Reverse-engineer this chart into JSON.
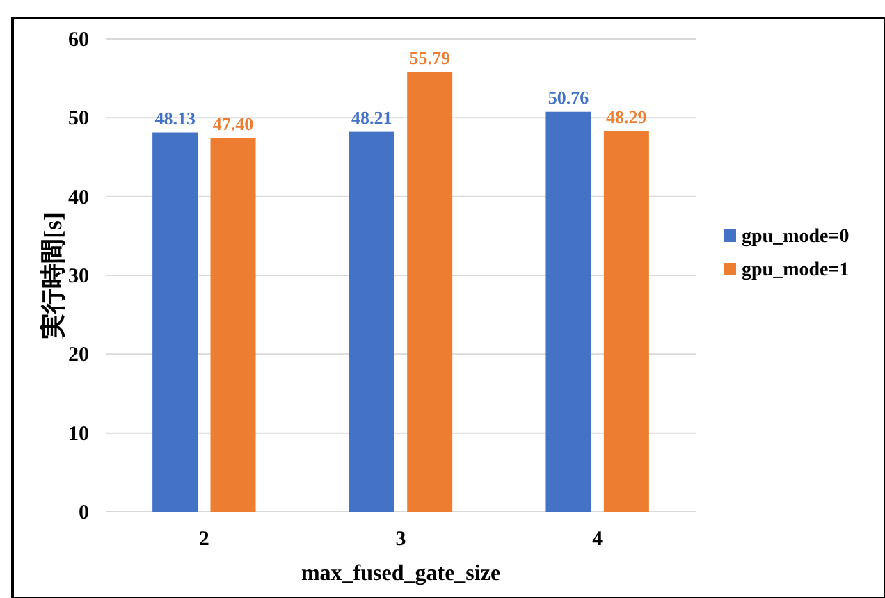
{
  "chart_data": {
    "type": "bar",
    "xlabel": "max_fused_gate_size",
    "ylabel": "実行時間[s]",
    "categories": [
      "2",
      "3",
      "4"
    ],
    "series": [
      {
        "name": "gpu_mode=0",
        "color": "#4472c4",
        "values": [
          48.13,
          48.21,
          50.76
        ]
      },
      {
        "name": "gpu_mode=1",
        "color": "#ed7d31",
        "values": [
          47.4,
          55.79,
          48.29
        ]
      }
    ],
    "value_labels": [
      [
        "48.13",
        "48.21",
        "50.76"
      ],
      [
        "47.40",
        "55.79",
        "48.29"
      ]
    ],
    "ylim": [
      0,
      60
    ],
    "yticks": [
      0,
      10,
      20,
      30,
      40,
      50,
      60
    ],
    "grid": "y",
    "legend": "right"
  }
}
